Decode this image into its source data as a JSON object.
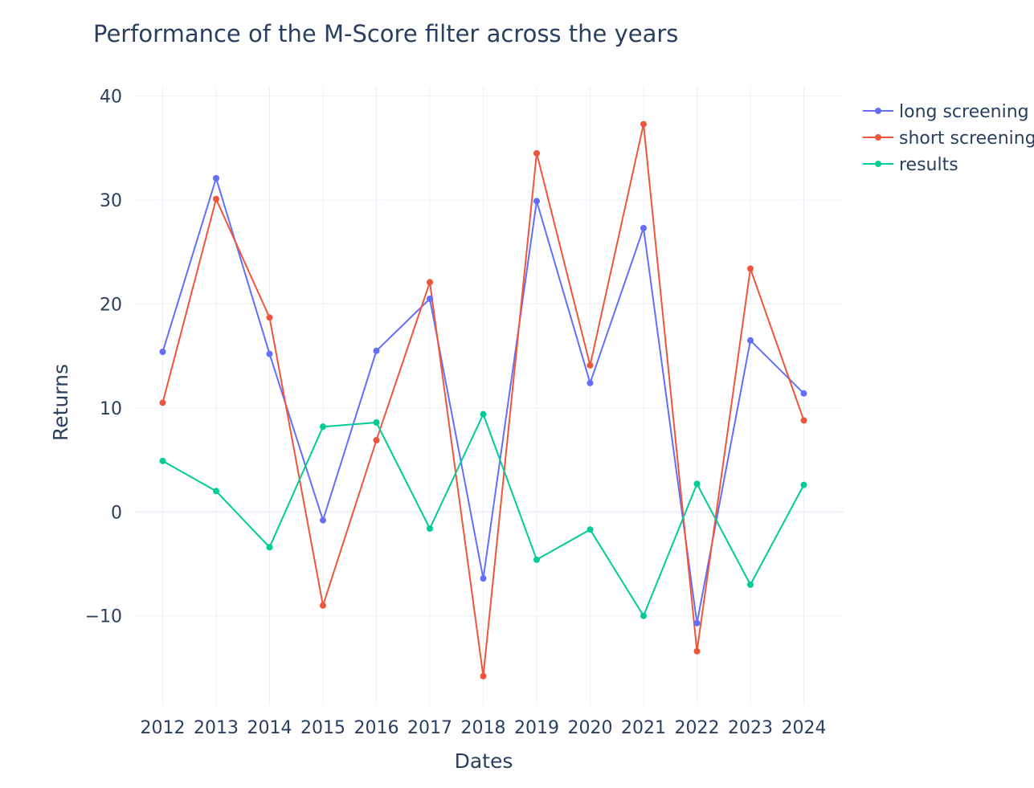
{
  "chart_data": {
    "type": "line",
    "title": "Performance of the M-Score filter across the years",
    "xlabel": "Dates",
    "ylabel": "Returns",
    "x": [
      "2012",
      "2013",
      "2014",
      "2015",
      "2016",
      "2017",
      "2018",
      "2019",
      "2020",
      "2021",
      "2022",
      "2023",
      "2024"
    ],
    "yticks": [
      -10,
      0,
      10,
      20,
      30,
      40
    ],
    "ytick_labels": [
      "−10",
      "0",
      "10",
      "20",
      "30",
      "40"
    ],
    "ylim": [
      -18.6,
      40.9
    ],
    "grid": true,
    "legend_position": "top-right",
    "series": [
      {
        "name": "long screening",
        "color": "#636efa",
        "values": [
          15.4,
          32.1,
          15.2,
          -0.8,
          15.5,
          20.5,
          -6.4,
          29.9,
          12.4,
          27.3,
          -10.7,
          16.5,
          11.4
        ]
      },
      {
        "name": "short screening",
        "color": "#ef553b",
        "values": [
          10.5,
          30.1,
          18.7,
          -9.0,
          6.9,
          22.1,
          -15.8,
          34.5,
          14.1,
          37.3,
          -13.4,
          23.4,
          8.8
        ]
      },
      {
        "name": "results",
        "color": "#00cc96",
        "values": [
          4.9,
          2.0,
          -3.4,
          8.2,
          8.6,
          -1.6,
          9.4,
          -4.6,
          -1.7,
          -10.0,
          2.7,
          -7.0,
          2.6
        ]
      }
    ]
  }
}
